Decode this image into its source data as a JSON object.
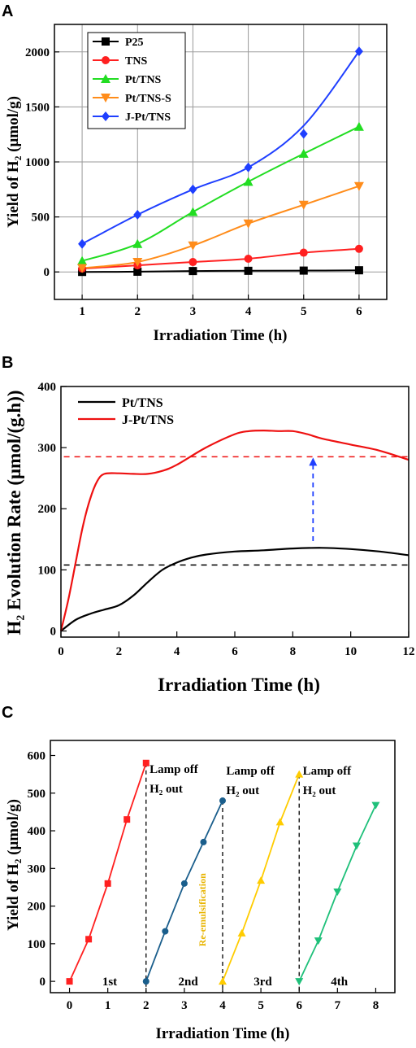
{
  "chart_data": [
    {
      "panel": "A",
      "type": "line",
      "xlabel": "Irradiation Time (h)",
      "ylabel": "Yield of H₂ (μmol/g)",
      "xlim": [
        0.5,
        6.5
      ],
      "ylim": [
        -250,
        2250
      ],
      "xticks": [
        "1",
        "2",
        "3",
        "4",
        "5",
        "6"
      ],
      "yticks": [
        "0",
        "500",
        "1000",
        "1500",
        "2000"
      ],
      "grid": true,
      "legend": "top-left",
      "x": [
        1,
        2,
        3,
        4,
        5,
        6
      ],
      "series": [
        {
          "name": "P25",
          "color": "#000000",
          "marker": "square",
          "values": [
            0,
            2,
            8,
            10,
            12,
            15
          ]
        },
        {
          "name": "TNS",
          "color": "#ff2020",
          "marker": "circle",
          "values": [
            30,
            60,
            90,
            120,
            175,
            210
          ]
        },
        {
          "name": "Pt/TNS",
          "color": "#22dd22",
          "marker": "triangle-up",
          "values": [
            100,
            255,
            545,
            820,
            1075,
            1320
          ]
        },
        {
          "name": "Pt/TNS-S",
          "color": "#ff8c1a",
          "marker": "triangle-down",
          "values": [
            35,
            90,
            240,
            440,
            610,
            780
          ]
        },
        {
          "name": "J-Pt/TNS",
          "color": "#1f3fff",
          "marker": "diamond",
          "values": [
            255,
            520,
            750,
            950,
            1255,
            2005
          ],
          "fit": [
            255,
            520,
            750,
            950,
            1330,
            2005
          ]
        }
      ]
    },
    {
      "panel": "B",
      "type": "line",
      "xlabel": "Irradiation Time (h)",
      "ylabel": "H₂ Evolution Rate (μmol/(g.h))",
      "xlim": [
        0,
        12
      ],
      "ylim": [
        -10,
        400
      ],
      "xticks": [
        "0",
        "2",
        "4",
        "6",
        "8",
        "10",
        "12"
      ],
      "yticks": [
        "0",
        "100",
        "200",
        "300",
        "400"
      ],
      "grid": false,
      "legend": "top-left",
      "series": [
        {
          "name": "Pt/TNS",
          "color": "#000000",
          "x": [
            0,
            0.5,
            1,
            1.5,
            2,
            2.5,
            3,
            3.5,
            4,
            4.5,
            5,
            6,
            7,
            8,
            9,
            10,
            11,
            12
          ],
          "values": [
            0,
            18,
            28,
            35,
            42,
            58,
            80,
            100,
            112,
            120,
            125,
            130,
            132,
            135,
            136,
            134,
            130,
            124
          ]
        },
        {
          "name": "J-Pt/TNS",
          "color": "#ee1111",
          "x": [
            0,
            0.25,
            0.5,
            0.75,
            1,
            1.25,
            1.5,
            2,
            2.5,
            3,
            3.5,
            4,
            5,
            6,
            6.5,
            7,
            7.5,
            8,
            8.5,
            9,
            10,
            11,
            12
          ],
          "values": [
            0,
            50,
            110,
            170,
            215,
            245,
            257,
            258,
            257,
            257,
            262,
            272,
            300,
            322,
            327,
            328,
            327,
            327,
            322,
            315,
            305,
            295,
            280
          ]
        }
      ],
      "reference_lines": [
        {
          "y": 285,
          "color": "#ee1111"
        },
        {
          "y": 108,
          "color": "#000000"
        }
      ],
      "arrow": {
        "x": 8.7,
        "from": 147,
        "to": 285,
        "color": "#1f3fff"
      }
    },
    {
      "panel": "C",
      "type": "line",
      "xlabel": "Irradiation Time (h)",
      "ylabel": "Yield of H₂ (μmol/g)",
      "xlim": [
        -0.5,
        8.5
      ],
      "ylim": [
        -30,
        640
      ],
      "xticks": [
        "0",
        "1",
        "2",
        "3",
        "4",
        "5",
        "6",
        "7",
        "8"
      ],
      "yticks": [
        "0",
        "100",
        "200",
        "300",
        "400",
        "500",
        "600"
      ],
      "grid": false,
      "series": [
        {
          "name": "1st",
          "color": "#ff2020",
          "marker": "square",
          "x": [
            0,
            0.5,
            1,
            1.5,
            2
          ],
          "values": [
            0,
            112,
            260,
            430,
            580
          ]
        },
        {
          "name": "2nd",
          "color": "#1a5e8c",
          "marker": "circle",
          "x": [
            2,
            2.5,
            3,
            3.5,
            4
          ],
          "values": [
            0,
            133,
            260,
            370,
            480
          ]
        },
        {
          "name": "3rd",
          "color": "#ffcc00",
          "marker": "triangle-up",
          "x": [
            4,
            4.5,
            5,
            5.5,
            6
          ],
          "values": [
            0,
            128,
            268,
            423,
            550
          ]
        },
        {
          "name": "4th",
          "color": "#1fc07a",
          "marker": "triangle-down",
          "x": [
            6,
            6.5,
            7,
            7.5,
            8
          ],
          "values": [
            0,
            108,
            238,
            360,
            468
          ]
        }
      ],
      "cycle_labels": [
        "1st",
        "2nd",
        "3rd",
        "4th"
      ],
      "dividers": [
        2,
        4,
        6
      ],
      "annotations": {
        "lamp_off": "Lamp off",
        "h2_out": "H₂ out",
        "re_emulsification": "Re-emulsification"
      }
    }
  ],
  "panel_labels": {
    "a": "A",
    "b": "B",
    "c": "C"
  }
}
